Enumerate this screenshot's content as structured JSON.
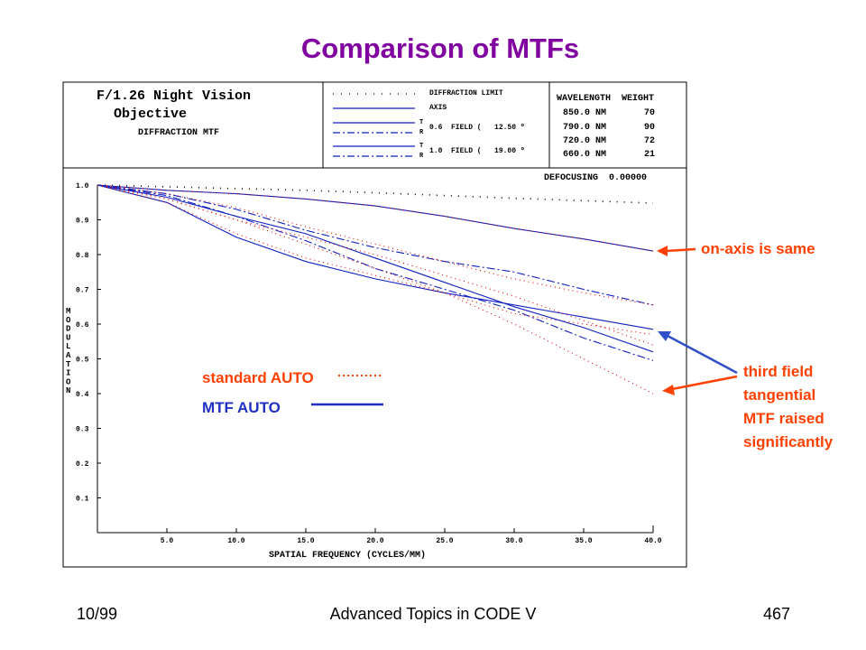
{
  "slide": {
    "title": "Comparison of MTFs",
    "footer_left": "10/99",
    "footer_center": "Advanced Topics in CODE V",
    "footer_right": "467"
  },
  "header": {
    "lens_title_1": "F/1.26 Night Vision",
    "lens_title_2": "Objective",
    "lens_title_3": "DIFFRACTION MTF",
    "legend_diffraction": "DIFFRACTION LIMIT",
    "legend_axis": "AXIS",
    "legend_t": "T",
    "legend_r": "R",
    "field_1": "0.6  FIELD (   12.50 º",
    "field_2": "1.0  FIELD (   19.00 º",
    "wavelength_header": "WAVELENGTH  WEIGHT",
    "wavelengths": [
      {
        "nm": "850.0 NM",
        "weight": "70"
      },
      {
        "nm": "790.0 NM",
        "weight": "90"
      },
      {
        "nm": "720.0 NM",
        "weight": "72"
      },
      {
        "nm": "660.0 NM",
        "weight": "21"
      }
    ],
    "defocusing": "DEFOCUSING  0.00000"
  },
  "annotations": {
    "standard_auto": "standard AUTO",
    "mtf_auto": "MTF AUTO",
    "on_axis": "on-axis is same",
    "third_field_lines": [
      "third field",
      "tangential",
      "MTF raised",
      "significantly"
    ]
  },
  "colors": {
    "title": "#8000a0",
    "annotation": "#ff4000",
    "mtf_auto": "#2030c0",
    "curve_blue": "#1020c0",
    "curve_red": "#e00000",
    "diffraction": "#000000"
  },
  "chart_data": {
    "type": "line",
    "xlabel": "SPATIAL FREQUENCY (CYCLES/MM)",
    "ylabel": "MODULATION",
    "xlim": [
      0,
      40
    ],
    "ylim": [
      0,
      1
    ],
    "x_ticks": [
      "5.0",
      "10.0",
      "15.0",
      "20.0",
      "25.0",
      "30.0",
      "35.0",
      "40.0"
    ],
    "y_ticks": [
      "1.0",
      "0.9",
      "0.8",
      "0.7",
      "0.6",
      "0.5",
      "0.4",
      "0.3",
      "0.2",
      "0.1"
    ],
    "x": [
      0,
      5,
      10,
      15,
      20,
      25,
      30,
      35,
      40
    ],
    "series": [
      {
        "name": "DIFFRACTION LIMIT",
        "color": "#000000",
        "dash": "dot",
        "values": [
          1.0,
          0.995,
          0.99,
          0.985,
          0.978,
          0.97,
          0.962,
          0.955,
          0.948
        ]
      },
      {
        "name": "AXIS",
        "color": "#1020c0",
        "dash": "solid",
        "values": [
          1.0,
          0.985,
          0.975,
          0.96,
          0.94,
          0.91,
          0.875,
          0.845,
          0.81
        ]
      },
      {
        "name": "AXIS",
        "color": "#e00000",
        "dash": "dot",
        "values": [
          1.0,
          0.985,
          0.975,
          0.96,
          0.94,
          0.91,
          0.875,
          0.845,
          0.81
        ]
      },
      {
        "name": "0.6 FIELD T",
        "color": "#1020c0",
        "dash": "dashdot",
        "values": [
          1.0,
          0.975,
          0.93,
          0.87,
          0.82,
          0.78,
          0.75,
          0.7,
          0.655
        ]
      },
      {
        "name": "0.6 FIELD T",
        "color": "#e00000",
        "dash": "dot",
        "values": [
          1.0,
          0.975,
          0.935,
          0.88,
          0.83,
          0.78,
          0.73,
          0.69,
          0.655
        ]
      },
      {
        "name": "0.6 FIELD R",
        "color": "#1020c0",
        "dash": "dashdot",
        "values": [
          1.0,
          0.97,
          0.91,
          0.84,
          0.76,
          0.7,
          0.64,
          0.56,
          0.495
        ]
      },
      {
        "name": "0.6 FIELD R",
        "color": "#e00000",
        "dash": "dot",
        "values": [
          1.0,
          0.96,
          0.9,
          0.83,
          0.76,
          0.69,
          0.63,
          0.6,
          0.57
        ]
      },
      {
        "name": "1.0 FIELD T",
        "color": "#1020c0",
        "dash": "solid",
        "values": [
          1.0,
          0.95,
          0.85,
          0.78,
          0.73,
          0.69,
          0.655,
          0.62,
          0.585
        ]
      },
      {
        "name": "1.0 FIELD T",
        "color": "#e00000",
        "dash": "dot",
        "values": [
          1.0,
          0.95,
          0.86,
          0.79,
          0.74,
          0.69,
          0.6,
          0.5,
          0.4
        ]
      },
      {
        "name": "1.0 FIELD R",
        "color": "#1020c0",
        "dash": "solid",
        "values": [
          1.0,
          0.965,
          0.91,
          0.86,
          0.79,
          0.72,
          0.65,
          0.59,
          0.52
        ]
      },
      {
        "name": "1.0 FIELD R",
        "color": "#e00000",
        "dash": "dot",
        "values": [
          1.0,
          0.96,
          0.9,
          0.85,
          0.8,
          0.74,
          0.68,
          0.61,
          0.54
        ]
      }
    ],
    "grid": false,
    "legend": "top"
  }
}
